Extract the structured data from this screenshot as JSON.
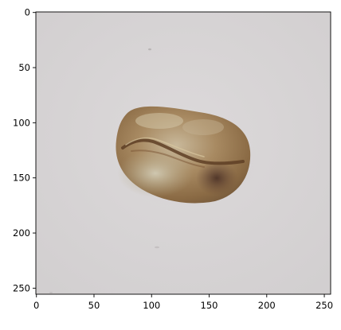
{
  "figure": {
    "image": {
      "subject": "green-coffee-bean-photo",
      "background_color": "#d6d3d4",
      "bean_colors": [
        "#a88a62",
        "#8a6a44",
        "#5a3d2c",
        "#c9c0a6"
      ]
    },
    "axes": {
      "xlim": [
        0,
        256
      ],
      "ylim": [
        256,
        0
      ],
      "x_ticks": [
        {
          "value": 0,
          "label": "0"
        },
        {
          "value": 50,
          "label": "50"
        },
        {
          "value": 100,
          "label": "100"
        },
        {
          "value": 150,
          "label": "150"
        },
        {
          "value": 200,
          "label": "200"
        },
        {
          "value": 250,
          "label": "250"
        }
      ],
      "y_ticks": [
        {
          "value": 0,
          "label": "0"
        },
        {
          "value": 50,
          "label": "50"
        },
        {
          "value": 100,
          "label": "100"
        },
        {
          "value": 150,
          "label": "150"
        },
        {
          "value": 200,
          "label": "200"
        },
        {
          "value": 250,
          "label": "250"
        }
      ]
    }
  }
}
